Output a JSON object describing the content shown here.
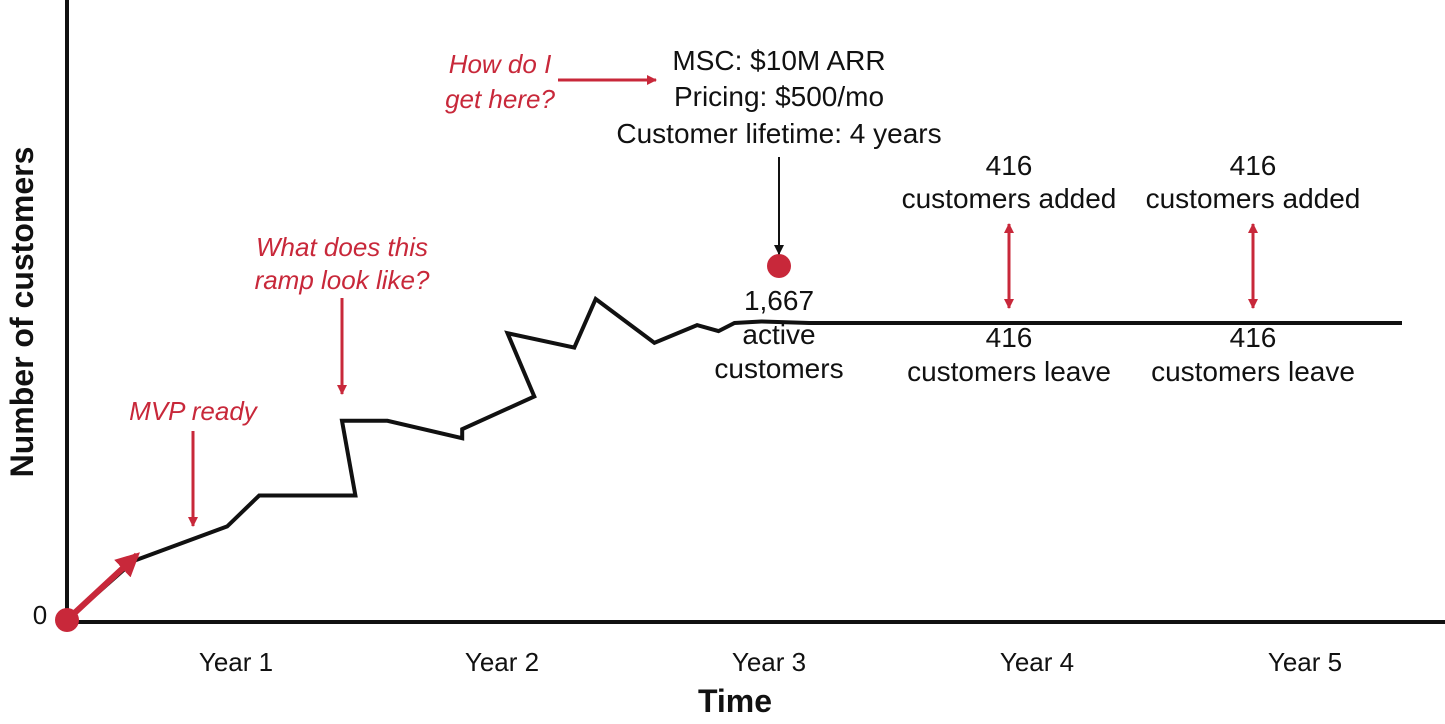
{
  "chart_data": {
    "type": "line",
    "title": "",
    "xlabel": "Time",
    "ylabel": "Number of customers",
    "x_tick_labels": [
      "Year 1",
      "Year 2",
      "Year 3",
      "Year 4",
      "Year 5"
    ],
    "y_tick_labels": [
      "0"
    ],
    "xlim": [
      0,
      5.4
    ],
    "ylim": [
      0,
      2000
    ],
    "series": [
      {
        "points": [
          [
            0,
            0
          ],
          [
            0.25,
            197
          ],
          [
            0.6,
            312
          ],
          [
            0.72,
            415
          ],
          [
            1.08,
            415
          ],
          [
            1.03,
            664
          ],
          [
            1.2,
            664
          ],
          [
            1.48,
            606
          ],
          [
            1.48,
            636
          ],
          [
            1.75,
            745
          ],
          [
            1.65,
            956
          ],
          [
            1.9,
            908
          ],
          [
            1.98,
            1070
          ],
          [
            2.2,
            924
          ],
          [
            2.36,
            983
          ],
          [
            2.44,
            963
          ],
          [
            2.5,
            990
          ],
          [
            2.6,
            995
          ],
          [
            2.78,
            990
          ],
          [
            4.0,
            990
          ],
          [
            5.0,
            990
          ]
        ]
      }
    ],
    "annotations": {
      "mvp": "MVP ready",
      "ramp_line1": "What does this",
      "ramp_line2": "ramp look like?",
      "how_line1": "How do I",
      "how_line2": "get here?",
      "msc": "MSC: $10M ARR",
      "pricing": "Pricing: $500/mo",
      "lifetime": "Customer lifetime: 4 years",
      "active_number": "1,667",
      "active_line1": "active",
      "active_line2": "customers",
      "year4_added_number": "416",
      "year4_added_text": "customers added",
      "year4_leave_number": "416",
      "year4_leave_text": "customers leave",
      "year5_added_number": "416",
      "year5_added_text": "customers added",
      "year5_leave_number": "416",
      "year5_leave_text": "customers leave"
    },
    "colors": {
      "line": "#111111",
      "accent": "#c8283a"
    },
    "grid": false,
    "legend": "none"
  }
}
